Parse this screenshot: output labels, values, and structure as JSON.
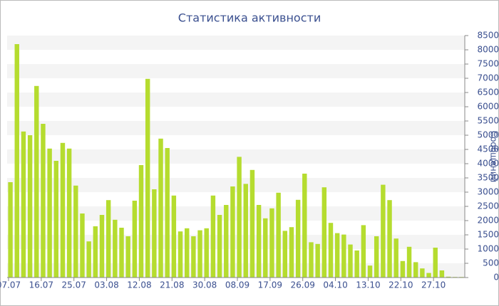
{
  "chart_data": {
    "type": "bar",
    "title": "Статистика активности",
    "y_label": "Сообщений",
    "categories": [
      "07.07",
      null,
      null,
      null,
      null,
      "16.07",
      null,
      null,
      null,
      null,
      "25.07",
      null,
      null,
      null,
      null,
      "03.08",
      null,
      null,
      null,
      null,
      "12.08",
      null,
      null,
      null,
      null,
      "21.08",
      null,
      null,
      null,
      null,
      "30.08",
      null,
      null,
      null,
      null,
      "08.09",
      null,
      null,
      null,
      null,
      "17.09",
      null,
      null,
      null,
      null,
      "26.09",
      null,
      null,
      null,
      null,
      "04.10",
      null,
      null,
      null,
      null,
      "13.10",
      null,
      null,
      null,
      null,
      "22.10",
      null,
      null,
      null,
      null,
      "27.10",
      null,
      null,
      null,
      null
    ],
    "values": [
      3350,
      8200,
      5130,
      5000,
      6730,
      5400,
      4530,
      4100,
      4730,
      4530,
      3230,
      2250,
      1270,
      1800,
      2200,
      2720,
      2030,
      1750,
      1450,
      2700,
      3950,
      6980,
      3100,
      4880,
      4550,
      2880,
      1620,
      1730,
      1450,
      1660,
      1730,
      2880,
      2200,
      2550,
      3200,
      4240,
      3290,
      3780,
      2550,
      2080,
      2430,
      2980,
      1640,
      1770,
      2730,
      3650,
      1240,
      1180,
      3170,
      1920,
      1560,
      1510,
      1160,
      950,
      1840,
      420,
      1450,
      3260,
      2720,
      1370,
      580,
      1080,
      540,
      320,
      160,
      1050,
      250,
      30,
      20,
      20
    ],
    "color": "#b5dc2f",
    "ylim": [
      0,
      8500
    ],
    "yticks": [
      0,
      500,
      1000,
      1500,
      2000,
      2500,
      3000,
      3500,
      4000,
      4500,
      5000,
      5500,
      6000,
      6500,
      7000,
      7500,
      8000,
      8500
    ],
    "y_axis_side": "right",
    "grid": true
  }
}
